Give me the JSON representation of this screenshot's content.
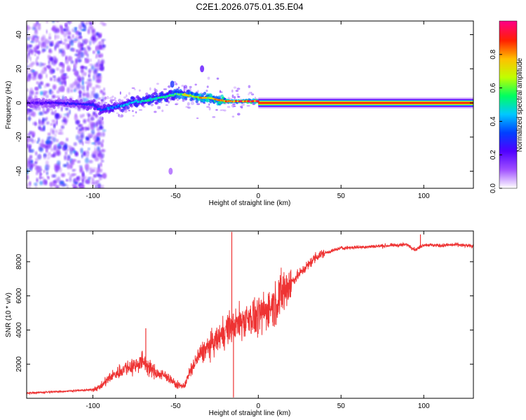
{
  "figure": {
    "title": "C2E1.2026.075.01.35.E04"
  },
  "chart_data": [
    {
      "type": "heatmap",
      "xlabel": "Height of straight line (km)",
      "ylabel": "Frequency (Hz)",
      "xlim": [
        -140,
        130
      ],
      "ylim": [
        -50,
        48
      ],
      "xticks": [
        -100,
        -50,
        0,
        50,
        100
      ],
      "yticks": [
        -40,
        -20,
        0,
        20,
        40
      ],
      "colorbar": {
        "label": "Normalized spectral amplitude",
        "range": [
          0,
          1
        ],
        "ticks": [
          0.0,
          0.2,
          0.4,
          0.6,
          0.8
        ],
        "colormap": [
          "#ffffff",
          "#a050ff",
          "#5000ff",
          "#0040ff",
          "#00c8ff",
          "#00ff60",
          "#c0ff00",
          "#ffc000",
          "#ff2000",
          "#ff0080"
        ]
      },
      "ridge": {
        "x": [
          -140,
          -120,
          -100,
          -95,
          -90,
          -85,
          -80,
          -75,
          -70,
          -65,
          -60,
          -55,
          -50,
          -45,
          -40,
          -35,
          -30,
          -25,
          -20,
          -15,
          -10,
          -5,
          0,
          10,
          30,
          60,
          90,
          130
        ],
        "frequency": [
          0,
          0,
          -1,
          -4,
          -3,
          -2,
          -1,
          1,
          1,
          2,
          3,
          4,
          5,
          5,
          4,
          3,
          3,
          2,
          1,
          1,
          1,
          1,
          1,
          0,
          0,
          0,
          0,
          0
        ],
        "amplitude": [
          0.2,
          0.25,
          0.3,
          0.35,
          0.4,
          0.4,
          0.45,
          0.45,
          0.5,
          0.5,
          0.55,
          0.55,
          0.6,
          0.7,
          0.75,
          0.8,
          0.8,
          0.85,
          0.85,
          0.9,
          0.9,
          0.95,
          0.95,
          0.95,
          0.95,
          0.95,
          0.95,
          0.95
        ]
      },
      "features": [
        {
          "x": -34,
          "frequency": 20,
          "amplitude": 0.2
        },
        {
          "x": -52,
          "frequency": 11,
          "amplitude": 0.3
        },
        {
          "x": -53,
          "frequency": -40,
          "amplitude": 0.1
        }
      ]
    },
    {
      "type": "line",
      "xlabel": "Height of straight line (km)",
      "ylabel": "SNR (10 * v/v)",
      "xlim": [
        -140,
        130
      ],
      "ylim": [
        0,
        9800
      ],
      "xticks": [
        -100,
        -50,
        0,
        50,
        100
      ],
      "yticks": [
        2000,
        4000,
        6000,
        8000
      ],
      "color": "#ee3333",
      "series": [
        {
          "x": [
            -140,
            -130,
            -120,
            -110,
            -100,
            -95,
            -90,
            -85,
            -80,
            -75,
            -70,
            -65,
            -60,
            -55,
            -50,
            -45,
            -40,
            -35,
            -30,
            -25,
            -20,
            -15,
            -10,
            -5,
            0,
            5,
            10,
            15,
            20,
            25,
            30,
            35,
            40,
            50,
            60,
            70,
            80,
            90,
            95,
            100,
            110,
            120,
            130
          ],
          "values": [
            300,
            350,
            400,
            450,
            500,
            700,
            1200,
            1500,
            1800,
            1900,
            2200,
            1700,
            1400,
            1300,
            800,
            700,
            1800,
            2600,
            3000,
            3400,
            4000,
            4200,
            4500,
            4800,
            4700,
            5200,
            5600,
            6200,
            6800,
            7300,
            7800,
            8300,
            8500,
            8800,
            8850,
            8900,
            8950,
            9000,
            8700,
            9000,
            8950,
            9000,
            8900
          ]
        }
      ],
      "annotations": [
        {
          "x": -68,
          "value": 4100
        },
        {
          "x": -16,
          "value": 9750
        },
        {
          "x": -15,
          "value": 50
        },
        {
          "x": 98,
          "value": 9600
        }
      ]
    }
  ]
}
